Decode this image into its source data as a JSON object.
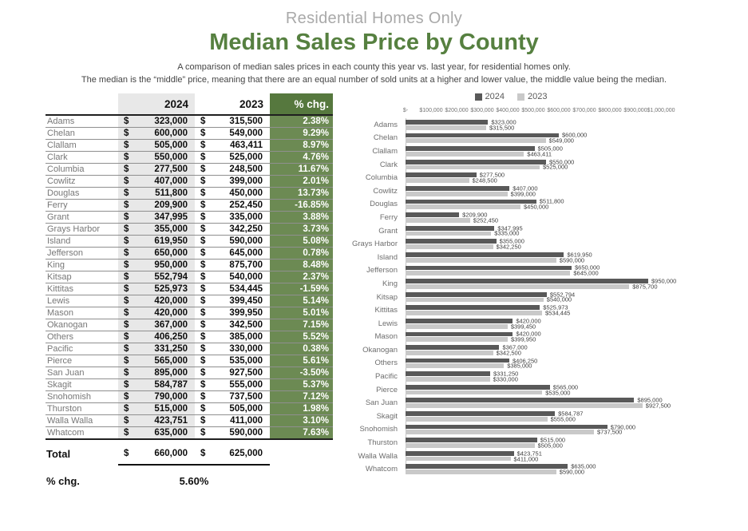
{
  "header": {
    "subtitle": "Residential Homes Only",
    "title": "Median Sales Price by County",
    "description_line1": "A comparison of median sales prices in each county this year vs. last year, for residential homes only.",
    "description_line2": "The median is the “middle” price, meaning that there are an equal number of sold units at a higher and lower value, the middle value being the median."
  },
  "colors": {
    "title_green": "#568040",
    "table_header_green": "#56783E",
    "table_cell_green": "#6C8A53",
    "column_2024_bg": "#e8e8e8",
    "bar_2024": "#595959",
    "bar_2023": "#c9c9c9"
  },
  "table": {
    "columns": [
      "",
      "2024",
      "2023",
      "% chg."
    ],
    "currency_symbol": "$",
    "rows": [
      {
        "county": "Adams",
        "y2024": "323,000",
        "y2023": "315,500",
        "pct": "2.38%"
      },
      {
        "county": "Chelan",
        "y2024": "600,000",
        "y2023": "549,000",
        "pct": "9.29%"
      },
      {
        "county": "Clallam",
        "y2024": "505,000",
        "y2023": "463,411",
        "pct": "8.97%"
      },
      {
        "county": "Clark",
        "y2024": "550,000",
        "y2023": "525,000",
        "pct": "4.76%"
      },
      {
        "county": "Columbia",
        "y2024": "277,500",
        "y2023": "248,500",
        "pct": "11.67%"
      },
      {
        "county": "Cowlitz",
        "y2024": "407,000",
        "y2023": "399,000",
        "pct": "2.01%"
      },
      {
        "county": "Douglas",
        "y2024": "511,800",
        "y2023": "450,000",
        "pct": "13.73%"
      },
      {
        "county": "Ferry",
        "y2024": "209,900",
        "y2023": "252,450",
        "pct": "-16.85%"
      },
      {
        "county": "Grant",
        "y2024": "347,995",
        "y2023": "335,000",
        "pct": "3.88%"
      },
      {
        "county": "Grays Harbor",
        "y2024": "355,000",
        "y2023": "342,250",
        "pct": "3.73%"
      },
      {
        "county": "Island",
        "y2024": "619,950",
        "y2023": "590,000",
        "pct": "5.08%"
      },
      {
        "county": "Jefferson",
        "y2024": "650,000",
        "y2023": "645,000",
        "pct": "0.78%"
      },
      {
        "county": "King",
        "y2024": "950,000",
        "y2023": "875,700",
        "pct": "8.48%"
      },
      {
        "county": "Kitsap",
        "y2024": "552,794",
        "y2023": "540,000",
        "pct": "2.37%"
      },
      {
        "county": "Kittitas",
        "y2024": "525,973",
        "y2023": "534,445",
        "pct": "-1.59%"
      },
      {
        "county": "Lewis",
        "y2024": "420,000",
        "y2023": "399,450",
        "pct": "5.14%"
      },
      {
        "county": "Mason",
        "y2024": "420,000",
        "y2023": "399,950",
        "pct": "5.01%"
      },
      {
        "county": "Okanogan",
        "y2024": "367,000",
        "y2023": "342,500",
        "pct": "7.15%"
      },
      {
        "county": "Others",
        "y2024": "406,250",
        "y2023": "385,000",
        "pct": "5.52%"
      },
      {
        "county": "Pacific",
        "y2024": "331,250",
        "y2023": "330,000",
        "pct": "0.38%"
      },
      {
        "county": "Pierce",
        "y2024": "565,000",
        "y2023": "535,000",
        "pct": "5.61%"
      },
      {
        "county": "San Juan",
        "y2024": "895,000",
        "y2023": "927,500",
        "pct": "-3.50%"
      },
      {
        "county": "Skagit",
        "y2024": "584,787",
        "y2023": "555,000",
        "pct": "5.37%"
      },
      {
        "county": "Snohomish",
        "y2024": "790,000",
        "y2023": "737,500",
        "pct": "7.12%"
      },
      {
        "county": "Thurston",
        "y2024": "515,000",
        "y2023": "505,000",
        "pct": "1.98%"
      },
      {
        "county": "Walla Walla",
        "y2024": "423,751",
        "y2023": "411,000",
        "pct": "3.10%"
      },
      {
        "county": "Whatcom",
        "y2024": "635,000",
        "y2023": "590,000",
        "pct": "7.63%"
      }
    ],
    "total": {
      "label": "Total",
      "y2024": "660,000",
      "y2023": "625,000"
    },
    "pct_change": {
      "label": "% chg.",
      "value": "5.60%"
    }
  },
  "chart_data": {
    "type": "bar",
    "orientation": "horizontal",
    "legend_position": "top",
    "grid": false,
    "xlim": [
      0,
      1000000
    ],
    "x_tick_labels": [
      "$-",
      "$100,000",
      "$200,000",
      "$300,000",
      "$400,000",
      "$500,000",
      "$600,000",
      "$700,000",
      "$800,000",
      "$900,000",
      "$1,000,000"
    ],
    "categories": [
      "Adams",
      "Chelan",
      "Clallam",
      "Clark",
      "Columbia",
      "Cowlitz",
      "Douglas",
      "Ferry",
      "Grant",
      "Grays Harbor",
      "Island",
      "Jefferson",
      "King",
      "Kitsap",
      "Kittitas",
      "Lewis",
      "Mason",
      "Okanogan",
      "Others",
      "Pacific",
      "Pierce",
      "San Juan",
      "Skagit",
      "Snohomish",
      "Thurston",
      "Walla Walla",
      "Whatcom"
    ],
    "series": [
      {
        "name": "2024",
        "color": "#595959",
        "values": [
          323000,
          600000,
          505000,
          550000,
          277500,
          407000,
          511800,
          209900,
          347995,
          355000,
          619950,
          650000,
          950000,
          552794,
          525973,
          420000,
          420000,
          367000,
          406250,
          331250,
          565000,
          895000,
          584787,
          790000,
          515000,
          423751,
          635000
        ]
      },
      {
        "name": "2023",
        "color": "#c9c9c9",
        "values": [
          315500,
          549000,
          463411,
          525000,
          248500,
          399000,
          450000,
          252450,
          335000,
          342250,
          590000,
          645000,
          875700,
          540000,
          534445,
          399450,
          399950,
          342500,
          385000,
          330000,
          535000,
          927500,
          555000,
          737500,
          505000,
          411000,
          590000
        ]
      }
    ]
  }
}
